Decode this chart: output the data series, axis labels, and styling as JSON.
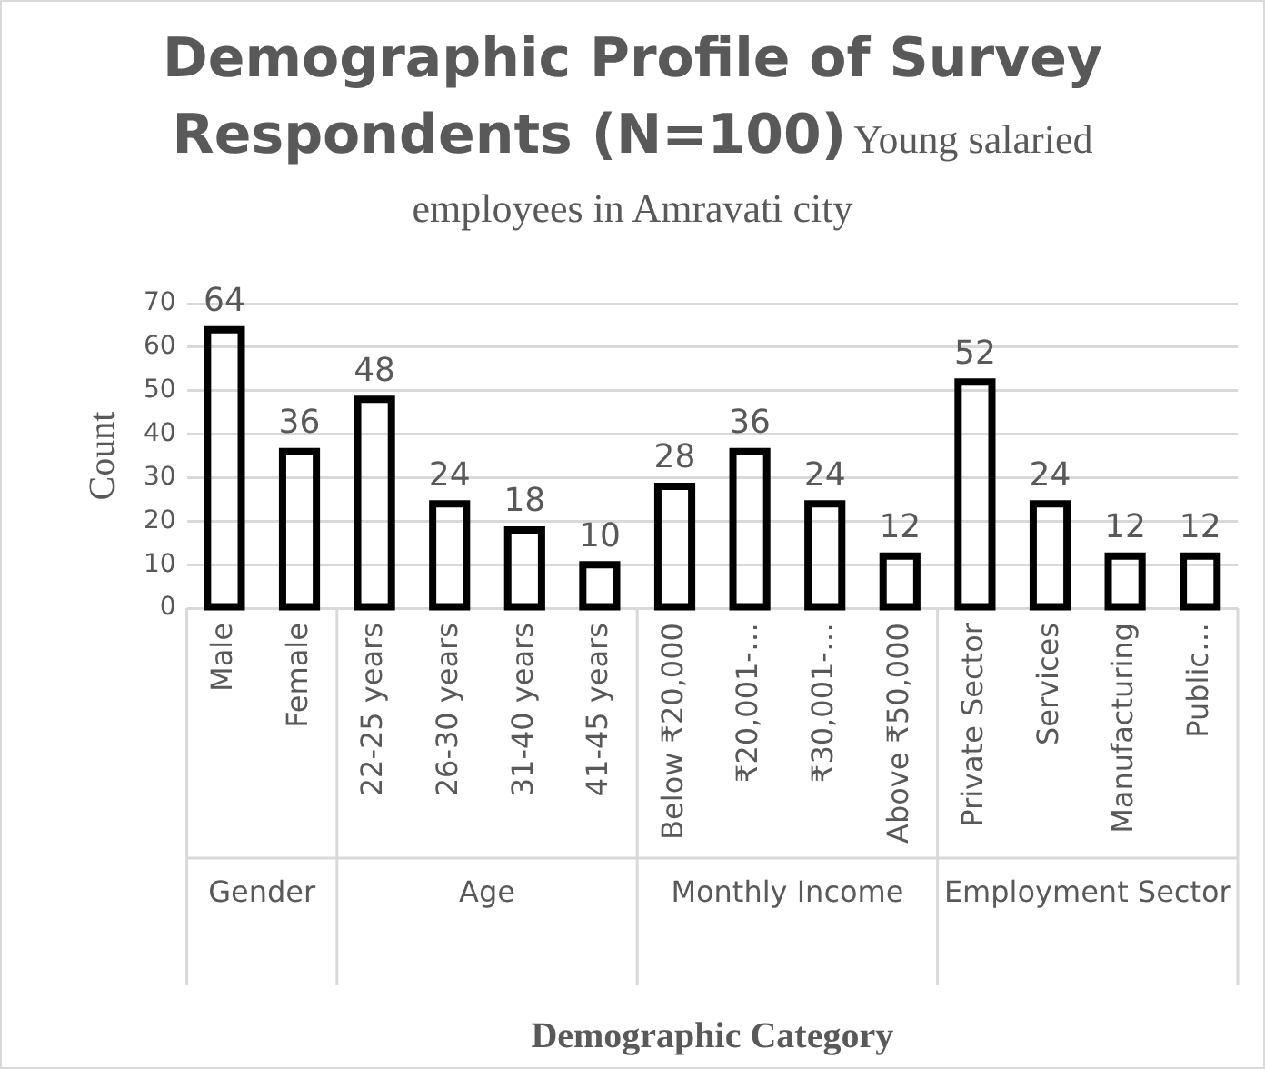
{
  "chart_data": {
    "type": "bar",
    "title": "Demographic Profile of Survey Respondents (N=100)",
    "subtitle": "Young salaried employees in Amravati city",
    "xlabel": "Demographic Category",
    "ylabel": "Count",
    "categories": [
      "Male",
      "Female",
      "22-25 years",
      "26-30 years",
      "31-40 years",
      "41-45 years",
      "Below ₹20,000",
      "₹20,001-…",
      "₹30,001-…",
      "Above ₹50,000",
      "Private Sector",
      "Services",
      "Manufacturing",
      "Public…"
    ],
    "values": [
      64,
      36,
      48,
      24,
      18,
      10,
      28,
      36,
      24,
      12,
      52,
      24,
      12,
      12
    ],
    "color": "#000000",
    "ylim": [
      0,
      70
    ],
    "yticks": [
      0,
      10,
      20,
      30,
      40,
      50,
      60,
      70
    ],
    "grid": "y",
    "legend": false,
    "data_labels": true,
    "annotations": [
      "Gender",
      "Age",
      "Monthly Income",
      "Employment Sector"
    ]
  }
}
